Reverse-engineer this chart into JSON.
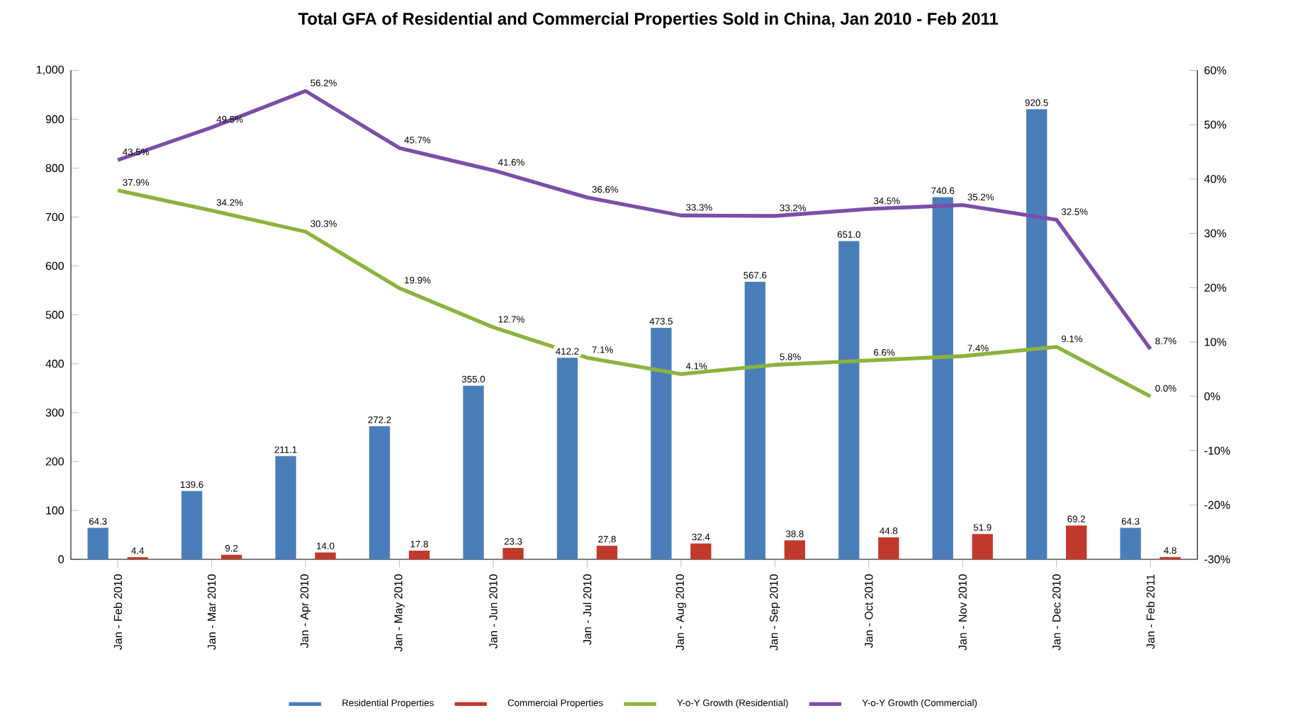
{
  "chart_data": {
    "type": "bar",
    "title": "Total GFA of Residential and Commercial Properties Sold in China, Jan 2010 - Feb 2011",
    "categories": [
      "Jan - Feb 2010",
      "Jan - Mar 2010",
      "Jan - Apr 2010",
      "Jan - May 2010",
      "Jan - Jun 2010",
      "Jan - Jul 2010",
      "Jan - Aug 2010",
      "Jan - Sep 2010",
      "Jan - Oct 2010",
      "Jan - Nov 2010",
      "Jan - Dec 2010",
      "Jan - Feb 2011"
    ],
    "series": [
      {
        "name": "Residential Properties",
        "type": "bar",
        "color": "#4a7ebb",
        "values": [
          64.3,
          139.6,
          211.1,
          272.2,
          355.0,
          412.2,
          473.5,
          567.6,
          651.0,
          740.6,
          920.5,
          64.3
        ],
        "value_labels": [
          "64.3",
          "139.6",
          "211.1",
          "272.2",
          "355.0",
          "412.2",
          "473.5",
          "567.6",
          "651.0",
          "740.6",
          "920.5",
          "64.3"
        ]
      },
      {
        "name": "Commercial Properties",
        "type": "bar",
        "color": "#c0392b",
        "values": [
          4.4,
          9.2,
          14.0,
          17.8,
          23.3,
          27.8,
          32.4,
          38.8,
          44.8,
          51.9,
          69.2,
          4.8
        ],
        "value_labels": [
          "4.4",
          "9.2",
          "14.0",
          "17.8",
          "23.3",
          "27.8",
          "32.4",
          "38.8",
          "44.8",
          "51.9",
          "69.2",
          "4.8"
        ]
      },
      {
        "name": "Y-o-Y Growth (Residential)",
        "type": "line",
        "axis": "y2",
        "color": "#8cb33d",
        "values": [
          37.9,
          34.2,
          30.3,
          19.9,
          12.7,
          7.1,
          4.1,
          5.8,
          6.6,
          7.4,
          9.1,
          0.0
        ],
        "value_labels": [
          "37.9%",
          "34.2%",
          "30.3%",
          "19.9%",
          "12.7%",
          "7.1%",
          "4.1%",
          "5.8%",
          "6.6%",
          "7.4%",
          "9.1%",
          "0.0%"
        ]
      },
      {
        "name": "Y-o-Y Growth (Commercial)",
        "type": "line",
        "axis": "y2",
        "color": "#7a4fa8",
        "values": [
          43.5,
          49.5,
          56.2,
          45.7,
          41.6,
          36.6,
          33.3,
          33.2,
          34.5,
          35.2,
          32.5,
          8.7
        ],
        "value_labels": [
          "43.5%",
          "49.5%",
          "56.2%",
          "45.7%",
          "41.6%",
          "36.6%",
          "33.3%",
          "33.2%",
          "34.5%",
          "35.2%",
          "32.5%",
          "8.7%"
        ]
      }
    ],
    "ylim": [
      0,
      1000
    ],
    "yticks": [
      0,
      100,
      200,
      300,
      400,
      500,
      600,
      700,
      800,
      900,
      {
        "value": 1000,
        "label": "1,000"
      }
    ],
    "y2lim": [
      -30,
      60
    ],
    "y2ticks": [
      {
        "value": -30,
        "label": "-30%"
      },
      {
        "value": -20,
        "label": "-20%"
      },
      {
        "value": -10,
        "label": "-10%"
      },
      {
        "value": 0,
        "label": "0%"
      },
      {
        "value": 10,
        "label": "10%"
      },
      {
        "value": 20,
        "label": "20%"
      },
      {
        "value": 30,
        "label": "30%"
      },
      {
        "value": 40,
        "label": "40%"
      },
      {
        "value": 50,
        "label": "50%"
      },
      {
        "value": 60,
        "label": "60%"
      }
    ],
    "grid": false,
    "legend": "bottom",
    "line_style": "solid",
    "marker": "none"
  }
}
